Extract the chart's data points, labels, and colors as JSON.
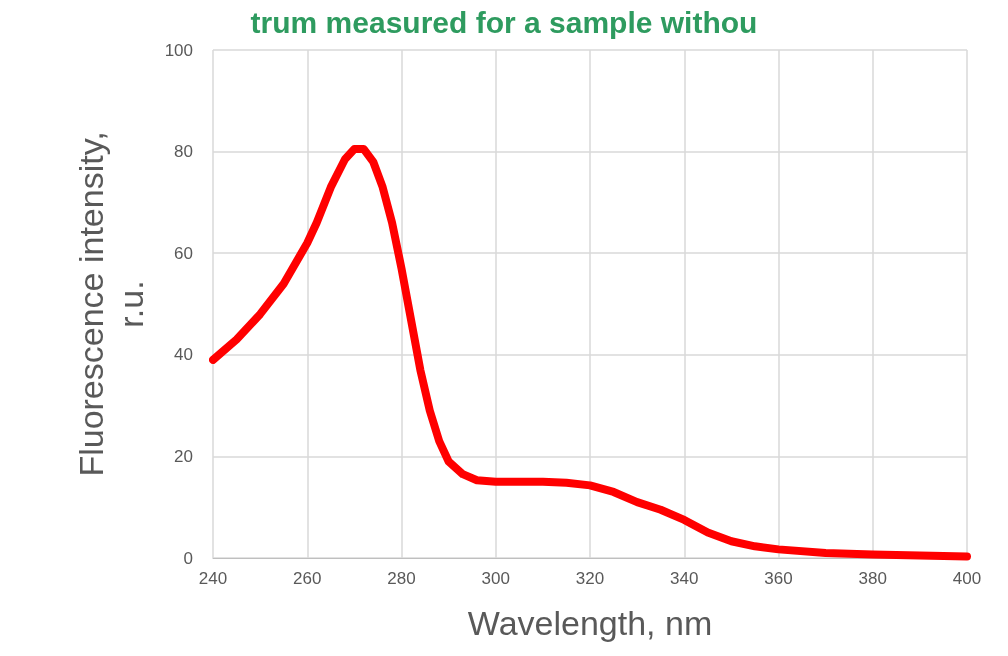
{
  "chart_data": {
    "type": "line",
    "title": "trum measured for a sample withou",
    "xlabel": "Wavelength, nm",
    "ylabel": "Fluorescence intensity,\nr.u.",
    "x": [
      240,
      245,
      250,
      255,
      260,
      262,
      265,
      268,
      270,
      272,
      274,
      276,
      278,
      280,
      282,
      284,
      286,
      288,
      290,
      293,
      296,
      300,
      305,
      310,
      315,
      320,
      325,
      330,
      335,
      340,
      345,
      350,
      355,
      360,
      370,
      380,
      390,
      400
    ],
    "series": [
      {
        "color": "#ff0000",
        "values": [
          39,
          43,
          48,
          54,
          62,
          66,
          73,
          78.5,
          80.5,
          80.5,
          78,
          73,
          66,
          57,
          47,
          37,
          29,
          23,
          19,
          16.5,
          15.3,
          15,
          15,
          15,
          14.8,
          14.3,
          13,
          11,
          9.5,
          7.5,
          5,
          3.3,
          2.3,
          1.7,
          1,
          0.7,
          0.5,
          0.3
        ]
      }
    ],
    "xlim": [
      240,
      400
    ],
    "xticks": [
      240,
      260,
      280,
      300,
      320,
      340,
      360,
      380,
      400
    ],
    "ylim": [
      0,
      100
    ],
    "yticks": [
      0,
      20,
      40,
      60,
      80,
      100
    ],
    "grid": true,
    "line_style": "solid"
  }
}
